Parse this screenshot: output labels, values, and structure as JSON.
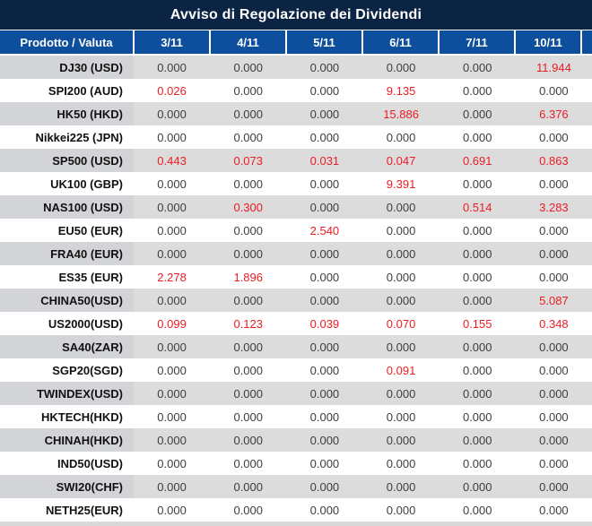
{
  "title": "Avviso di Regolazione dei Dividendi",
  "columns": [
    "Prodotto / Valuta",
    "3/11",
    "4/11",
    "5/11",
    "6/11",
    "7/11",
    "10/11"
  ],
  "rows": [
    {
      "product": "DJ30 (USD)",
      "values": [
        "0.000",
        "0.000",
        "0.000",
        "0.000",
        "0.000",
        "11.944"
      ],
      "red": [
        false,
        false,
        false,
        false,
        false,
        true
      ]
    },
    {
      "product": "SPI200 (AUD)",
      "values": [
        "0.026",
        "0.000",
        "0.000",
        "9.135",
        "0.000",
        "0.000"
      ],
      "red": [
        true,
        false,
        false,
        true,
        false,
        false
      ]
    },
    {
      "product": "HK50 (HKD)",
      "values": [
        "0.000",
        "0.000",
        "0.000",
        "15.886",
        "0.000",
        "6.376"
      ],
      "red": [
        false,
        false,
        false,
        true,
        false,
        true
      ]
    },
    {
      "product": "Nikkei225 (JPN)",
      "values": [
        "0.000",
        "0.000",
        "0.000",
        "0.000",
        "0.000",
        "0.000"
      ],
      "red": [
        false,
        false,
        false,
        false,
        false,
        false
      ]
    },
    {
      "product": "SP500 (USD)",
      "values": [
        "0.443",
        "0.073",
        "0.031",
        "0.047",
        "0.691",
        "0.863"
      ],
      "red": [
        true,
        true,
        true,
        true,
        true,
        true
      ]
    },
    {
      "product": "UK100 (GBP)",
      "values": [
        "0.000",
        "0.000",
        "0.000",
        "9.391",
        "0.000",
        "0.000"
      ],
      "red": [
        false,
        false,
        false,
        true,
        false,
        false
      ]
    },
    {
      "product": "NAS100 (USD)",
      "values": [
        "0.000",
        "0.300",
        "0.000",
        "0.000",
        "0.514",
        "3.283"
      ],
      "red": [
        false,
        true,
        false,
        false,
        true,
        true
      ]
    },
    {
      "product": "EU50 (EUR)",
      "values": [
        "0.000",
        "0.000",
        "2.540",
        "0.000",
        "0.000",
        "0.000"
      ],
      "red": [
        false,
        false,
        true,
        false,
        false,
        false
      ]
    },
    {
      "product": "FRA40 (EUR)",
      "values": [
        "0.000",
        "0.000",
        "0.000",
        "0.000",
        "0.000",
        "0.000"
      ],
      "red": [
        false,
        false,
        false,
        false,
        false,
        false
      ]
    },
    {
      "product": "ES35 (EUR)",
      "values": [
        "2.278",
        "1.896",
        "0.000",
        "0.000",
        "0.000",
        "0.000"
      ],
      "red": [
        true,
        true,
        false,
        false,
        false,
        false
      ]
    },
    {
      "product": "CHINA50(USD)",
      "values": [
        "0.000",
        "0.000",
        "0.000",
        "0.000",
        "0.000",
        "5.087"
      ],
      "red": [
        false,
        false,
        false,
        false,
        false,
        true
      ]
    },
    {
      "product": "US2000(USD)",
      "values": [
        "0.099",
        "0.123",
        "0.039",
        "0.070",
        "0.155",
        "0.348"
      ],
      "red": [
        true,
        true,
        true,
        true,
        true,
        true
      ]
    },
    {
      "product": "SA40(ZAR)",
      "values": [
        "0.000",
        "0.000",
        "0.000",
        "0.000",
        "0.000",
        "0.000"
      ],
      "red": [
        false,
        false,
        false,
        false,
        false,
        false
      ]
    },
    {
      "product": "SGP20(SGD)",
      "values": [
        "0.000",
        "0.000",
        "0.000",
        "0.091",
        "0.000",
        "0.000"
      ],
      "red": [
        false,
        false,
        false,
        true,
        false,
        false
      ]
    },
    {
      "product": "TWINDEX(USD)",
      "values": [
        "0.000",
        "0.000",
        "0.000",
        "0.000",
        "0.000",
        "0.000"
      ],
      "red": [
        false,
        false,
        false,
        false,
        false,
        false
      ]
    },
    {
      "product": "HKTECH(HKD)",
      "values": [
        "0.000",
        "0.000",
        "0.000",
        "0.000",
        "0.000",
        "0.000"
      ],
      "red": [
        false,
        false,
        false,
        false,
        false,
        false
      ]
    },
    {
      "product": "CHINAH(HKD)",
      "values": [
        "0.000",
        "0.000",
        "0.000",
        "0.000",
        "0.000",
        "0.000"
      ],
      "red": [
        false,
        false,
        false,
        false,
        false,
        false
      ]
    },
    {
      "product": "IND50(USD)",
      "values": [
        "0.000",
        "0.000",
        "0.000",
        "0.000",
        "0.000",
        "0.000"
      ],
      "red": [
        false,
        false,
        false,
        false,
        false,
        false
      ]
    },
    {
      "product": "SWI20(CHF)",
      "values": [
        "0.000",
        "0.000",
        "0.000",
        "0.000",
        "0.000",
        "0.000"
      ],
      "red": [
        false,
        false,
        false,
        false,
        false,
        false
      ]
    },
    {
      "product": "NETH25(EUR)",
      "values": [
        "0.000",
        "0.000",
        "0.000",
        "0.000",
        "0.000",
        "0.000"
      ],
      "red": [
        false,
        false,
        false,
        false,
        false,
        false
      ]
    }
  ],
  "colors": {
    "title_bg": "#0c2444",
    "header_bg": "#0d4e9d",
    "header_text": "#ffffff",
    "alt_row_bg": "#dcdcdc",
    "alt_row_product_bg": "#d3d4d8",
    "value_default": "#3d3d3d",
    "value_highlight_red": "#ed1c24",
    "bottom_strip_bg": "#d9d9d9"
  }
}
